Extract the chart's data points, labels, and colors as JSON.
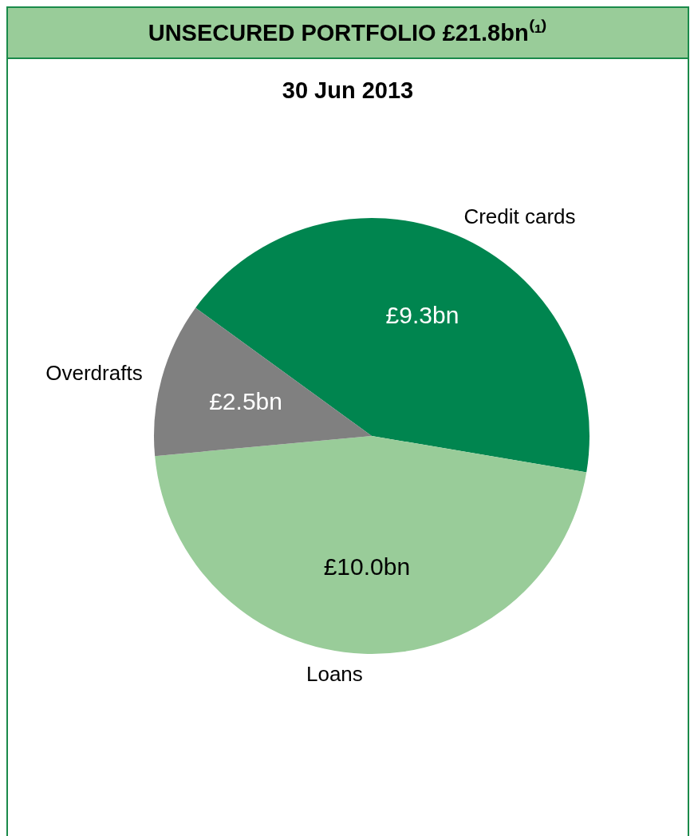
{
  "chart_data": {
    "type": "pie",
    "title": "UNSECURED PORTFOLIO £21.8bn⁽¹⁾",
    "subtitle": "30 Jun 2013",
    "categories": [
      "Credit cards",
      "Loans",
      "Overdrafts"
    ],
    "values": [
      9.3,
      10.0,
      2.5
    ],
    "colors": [
      "#00854f",
      "#99cc99",
      "#808080"
    ],
    "value_labels": [
      "£9.3bn",
      "£10.0bn",
      "£2.5bn"
    ],
    "legend": false
  }
}
